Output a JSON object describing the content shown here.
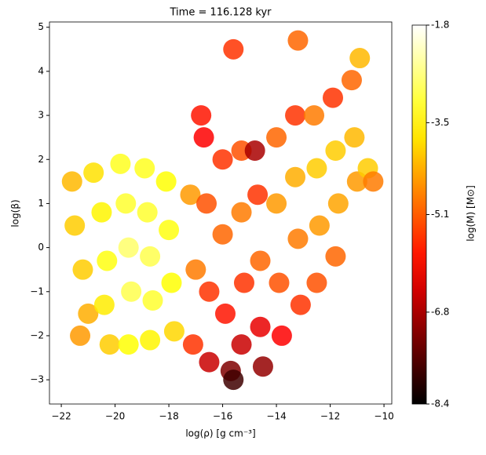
{
  "chart_data": {
    "type": "scatter",
    "title": "Time = 116.128 kyr",
    "x_label": "log(ρ) [g cm⁻³]",
    "y_label": "log(β)",
    "colorbar_label": "log(M) [M⊙]",
    "colormap": "hot",
    "xlim": [
      -22.44,
      -9.71
    ],
    "ylim": [
      -3.55,
      5.12
    ],
    "clim": [
      -8.4,
      -1.8
    ],
    "xticks": [
      {
        "value": -22,
        "label": "−22"
      },
      {
        "value": -20,
        "label": "−20"
      },
      {
        "value": -18,
        "label": "−18"
      },
      {
        "value": -16,
        "label": "−16"
      },
      {
        "value": -14,
        "label": "−14"
      },
      {
        "value": -12,
        "label": "−12"
      },
      {
        "value": -10,
        "label": "−10"
      }
    ],
    "yticks": [
      {
        "value": -3,
        "label": "−3"
      },
      {
        "value": -2,
        "label": "−2"
      },
      {
        "value": -1,
        "label": "−1"
      },
      0,
      1,
      2,
      3,
      4,
      5
    ],
    "cticks": [
      -1.8,
      -3.5,
      -5.1,
      -6.8,
      -8.4
    ],
    "x": [
      -21.6,
      -21.5,
      -21.2,
      -21.0,
      -21.3,
      -20.8,
      -20.5,
      -20.3,
      -20.4,
      -20.2,
      -19.8,
      -19.6,
      -19.5,
      -19.4,
      -19.5,
      -18.9,
      -18.8,
      -18.7,
      -18.6,
      -18.7,
      -18.1,
      -18.0,
      -17.9,
      -17.8,
      -17.2,
      -17.0,
      -17.1,
      -16.7,
      -16.6,
      -16.5,
      -16.5,
      -16.0,
      -16.0,
      -15.9,
      -15.7,
      -15.3,
      -15.3,
      -15.2,
      -15.3,
      -15.6,
      -14.8,
      -14.7,
      -14.6,
      -14.6,
      -14.5,
      -14.0,
      -14.0,
      -13.9,
      -13.8,
      -13.3,
      -13.3,
      -13.2,
      -13.1,
      -12.6,
      -12.5,
      -12.4,
      -12.5,
      -11.9,
      -11.8,
      -11.7,
      -11.8,
      -11.2,
      -11.1,
      -11.0,
      -10.6,
      -10.9,
      -10.4,
      -16.8,
      -13.2,
      -15.6
    ],
    "y": [
      1.5,
      0.5,
      -0.5,
      -1.5,
      -2.0,
      1.7,
      0.8,
      -0.3,
      -1.3,
      -2.2,
      1.9,
      1.0,
      0,
      -1.0,
      -2.2,
      1.8,
      0.8,
      -0.2,
      -1.2,
      -2.1,
      1.5,
      0.4,
      -0.8,
      -1.9,
      1.2,
      -0.5,
      -2.2,
      2.5,
      1.0,
      -1.0,
      -2.6,
      2.0,
      0.3,
      -1.5,
      -2.8,
      2.2,
      0.8,
      -0.8,
      -2.2,
      -3.0,
      2.2,
      1.2,
      -0.3,
      -1.8,
      -2.7,
      2.5,
      1.0,
      -0.8,
      -2.0,
      3.0,
      1.6,
      0.2,
      -1.3,
      3.0,
      1.8,
      0.5,
      -0.8,
      3.4,
      2.2,
      1.0,
      -0.2,
      3.8,
      2.5,
      1.5,
      1.8,
      4.3,
      1.5,
      3.0,
      4.7,
      4.5
    ],
    "c": [
      -4.2,
      -4.0,
      -4.0,
      -4.3,
      -4.5,
      -3.8,
      -3.6,
      -3.4,
      -3.7,
      -4.0,
      -3.3,
      -3.2,
      -2.8,
      -3.0,
      -3.5,
      -3.3,
      -3.2,
      -3.0,
      -3.2,
      -3.6,
      -3.5,
      -3.4,
      -3.5,
      -3.9,
      -4.5,
      -4.8,
      -5.5,
      -6.0,
      -5.2,
      -5.5,
      -6.5,
      -5.5,
      -5.0,
      -5.8,
      -7.2,
      -5.2,
      -4.8,
      -5.5,
      -6.5,
      -7.8,
      -6.8,
      -5.5,
      -5.0,
      -6.2,
      -7.0,
      -5.0,
      -4.5,
      -5.2,
      -6.0,
      -5.5,
      -4.3,
      -4.8,
      -5.5,
      -4.8,
      -4.0,
      -4.5,
      -5.2,
      -5.5,
      -4.0,
      -4.4,
      -5.0,
      -5.0,
      -4.2,
      -4.5,
      -4.0,
      -4.2,
      -4.8,
      -5.8,
      -5.0,
      -5.5
    ]
  }
}
